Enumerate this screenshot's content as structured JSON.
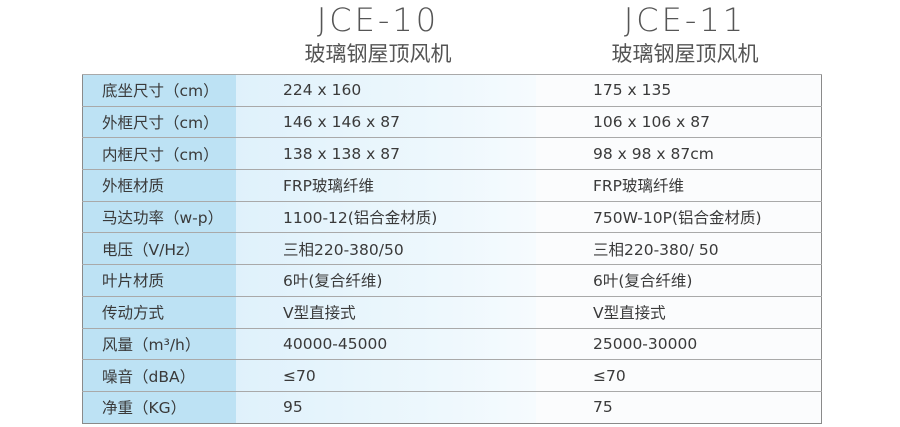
{
  "header": {
    "columns": [
      {
        "model": "JCE-10",
        "name": "玻璃钢屋顶风机"
      },
      {
        "model": "JCE-11",
        "name": "玻璃钢屋顶风机"
      }
    ]
  },
  "table": {
    "rows": [
      [
        "底坐尺寸（cm）",
        "224 x 160",
        "175 x 135"
      ],
      [
        "外框尺寸（cm）",
        "146 x 146 x 87",
        "106 x 106 x 87"
      ],
      [
        "内框尺寸（cm）",
        "138 x 138 x 87",
        "98 x 98 x 87cm"
      ],
      [
        "外框材质",
        "FRP玻璃纤维",
        "FRP玻璃纤维"
      ],
      [
        "马达功率（w-p）",
        "1100-12(铝合金材质)",
        "750W-10P(铝合金材质)"
      ],
      [
        "电压（V/Hz）",
        "三相220-380/50",
        "三相220-380/ 50"
      ],
      [
        "叶片材质",
        "6叶(复合纤维)",
        "6叶(复合纤维)"
      ],
      [
        "传动方式",
        "V型直接式",
        "V型直接式"
      ],
      [
        "风量（m³/h）",
        "40000-45000",
        "25000-30000"
      ],
      [
        "噪音（dBA）",
        "≤70",
        "≤70"
      ],
      [
        "净重（KG）",
        "95",
        "75"
      ]
    ]
  }
}
